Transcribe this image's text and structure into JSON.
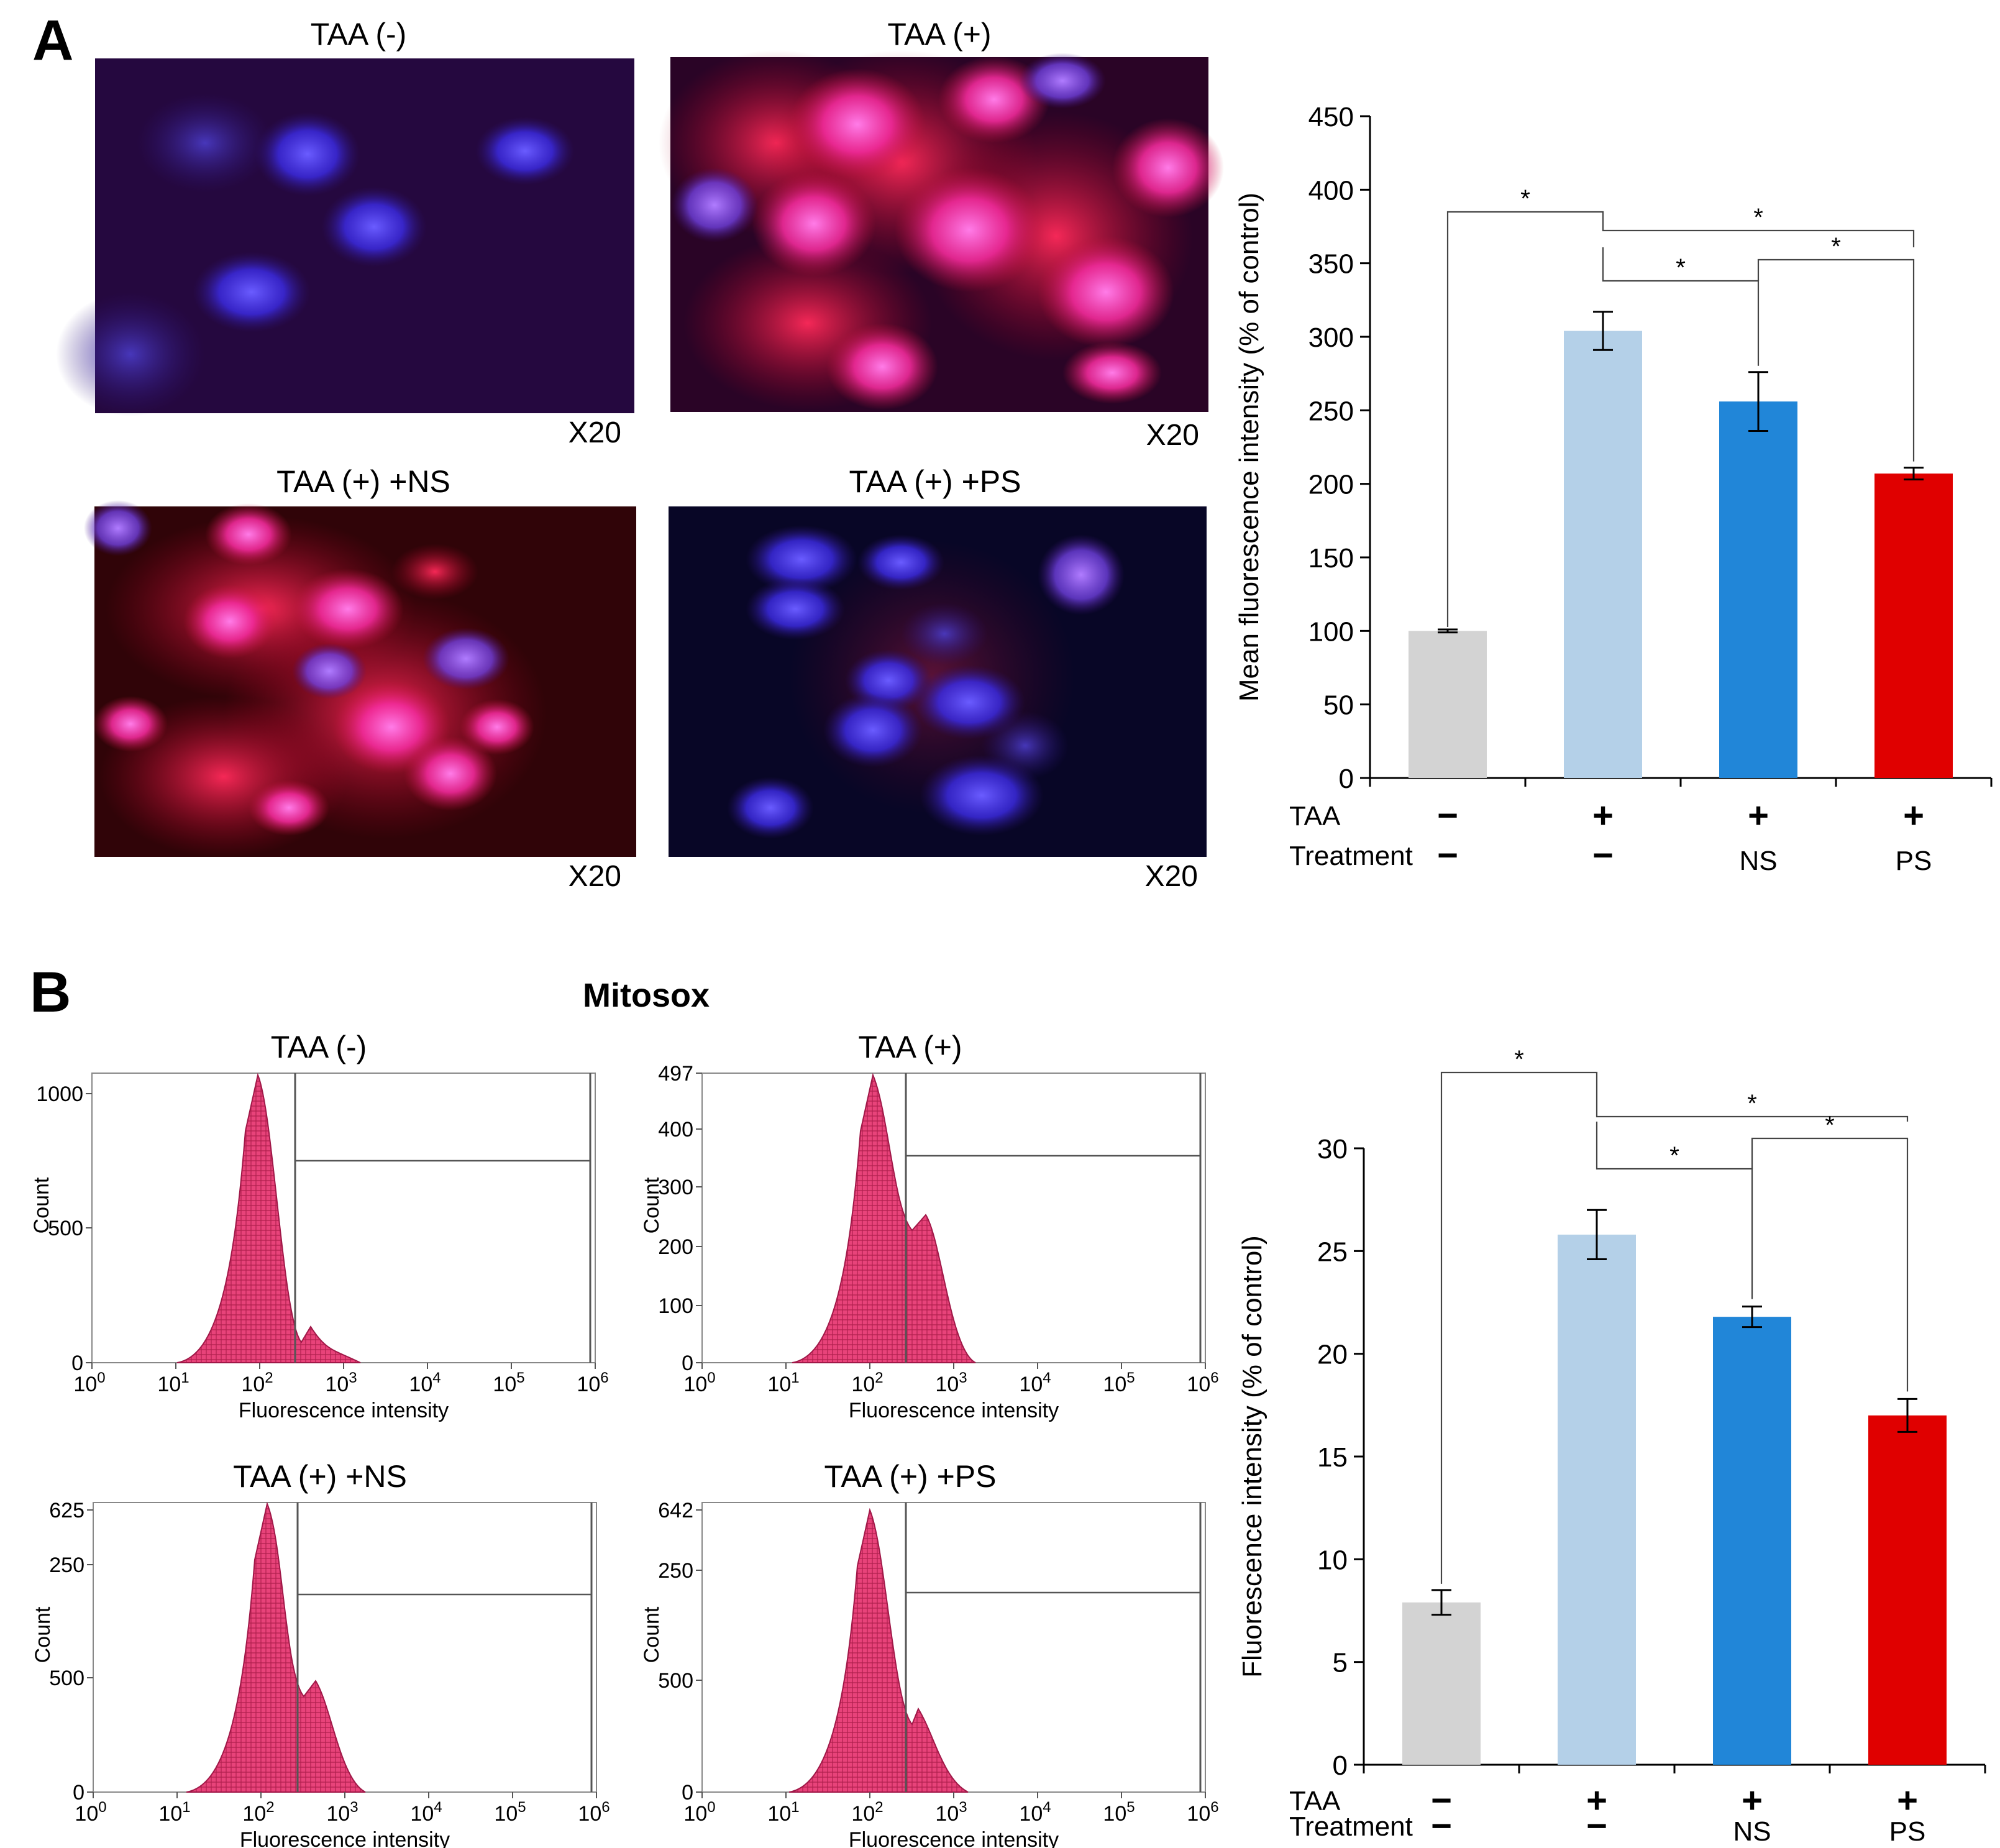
{
  "panel_a": {
    "letter": "A",
    "images": [
      {
        "title": "TAA (-)",
        "magnification": "X20"
      },
      {
        "title": "TAA (+)",
        "magnification": "X20"
      },
      {
        "title": "TAA (+) +NS",
        "magnification": "X20"
      },
      {
        "title": "TAA (+) +PS",
        "magnification": "X20"
      }
    ]
  },
  "panel_b": {
    "letter": "B",
    "title": "Mitosox",
    "histograms": [
      {
        "title": "TAA (-)",
        "ylabel": "Count",
        "xlabel": "Fluorescence intensity",
        "yticks": [
          "1000",
          "500",
          "0"
        ]
      },
      {
        "title": "TAA (+)",
        "ylabel": "Count",
        "xlabel": "Fluorescence intensity",
        "yticks": [
          "497",
          "400",
          "300",
          "200",
          "100",
          "0"
        ]
      },
      {
        "title": "TAA (+) +NS",
        "ylabel": "Count",
        "xlabel": "Fluorescence intensity",
        "yticks": [
          "625",
          "500",
          "250",
          "0"
        ]
      },
      {
        "title": "TAA (+) +PS",
        "ylabel": "Count",
        "xlabel": "Fluorescence intensity",
        "yticks": [
          "642",
          "500",
          "250",
          "0"
        ]
      }
    ],
    "xtick_exponents": [
      "0",
      "1",
      "2",
      "3",
      "4",
      "5",
      "6"
    ],
    "xtick_base": "10"
  },
  "chart_data": [
    {
      "type": "bar",
      "categories": [
        "TAA (-)",
        "TAA (+)",
        "TAA (+) +NS",
        "TAA (+) +PS"
      ],
      "values": [
        100,
        304,
        256,
        207
      ],
      "errors": [
        1,
        13,
        20,
        4
      ],
      "colors": [
        "#d3d3d3",
        "#b4d0e8",
        "#2186d8",
        "#e00000"
      ],
      "ylabel": "Mean fluorescence intensity (% of control)",
      "ylim": [
        0,
        450
      ],
      "yticks": [
        0,
        50,
        100,
        150,
        200,
        250,
        300,
        350,
        400,
        450
      ],
      "row_labels": [
        "TAA",
        "Treatment"
      ],
      "taa_signs": [
        "−",
        "+",
        "+",
        "+"
      ],
      "treatment_labels": [
        "−",
        "−",
        "NS",
        "PS"
      ],
      "significance": [
        {
          "between": [
            0,
            1
          ],
          "label": "*"
        },
        {
          "between": [
            1,
            3
          ],
          "label": "*"
        },
        {
          "between": [
            1,
            2
          ],
          "label": "*"
        },
        {
          "between": [
            2,
            3
          ],
          "label": "*"
        }
      ]
    },
    {
      "type": "bar",
      "categories": [
        "TAA (-)",
        "TAA (+)",
        "TAA (+) +NS",
        "TAA (+) +PS"
      ],
      "values": [
        7.9,
        25.8,
        21.8,
        17.0
      ],
      "errors": [
        0.6,
        1.2,
        0.5,
        0.8
      ],
      "colors": [
        "#d3d3d3",
        "#b4d0e8",
        "#2186d8",
        "#e00000"
      ],
      "ylabel": "Fluorescence intensity (% of control)",
      "ylim": [
        0,
        30
      ],
      "yticks": [
        0,
        5,
        10,
        15,
        20,
        25,
        30
      ],
      "row_labels": [
        "TAA",
        "Treatment"
      ],
      "taa_signs": [
        "−",
        "+",
        "+",
        "+"
      ],
      "treatment_labels": [
        "−",
        "−",
        "NS",
        "PS"
      ],
      "significance": [
        {
          "between": [
            0,
            1
          ],
          "label": "*"
        },
        {
          "between": [
            1,
            3
          ],
          "label": "*"
        },
        {
          "between": [
            1,
            2
          ],
          "label": "*"
        },
        {
          "between": [
            2,
            3
          ],
          "label": "*"
        }
      ]
    }
  ]
}
